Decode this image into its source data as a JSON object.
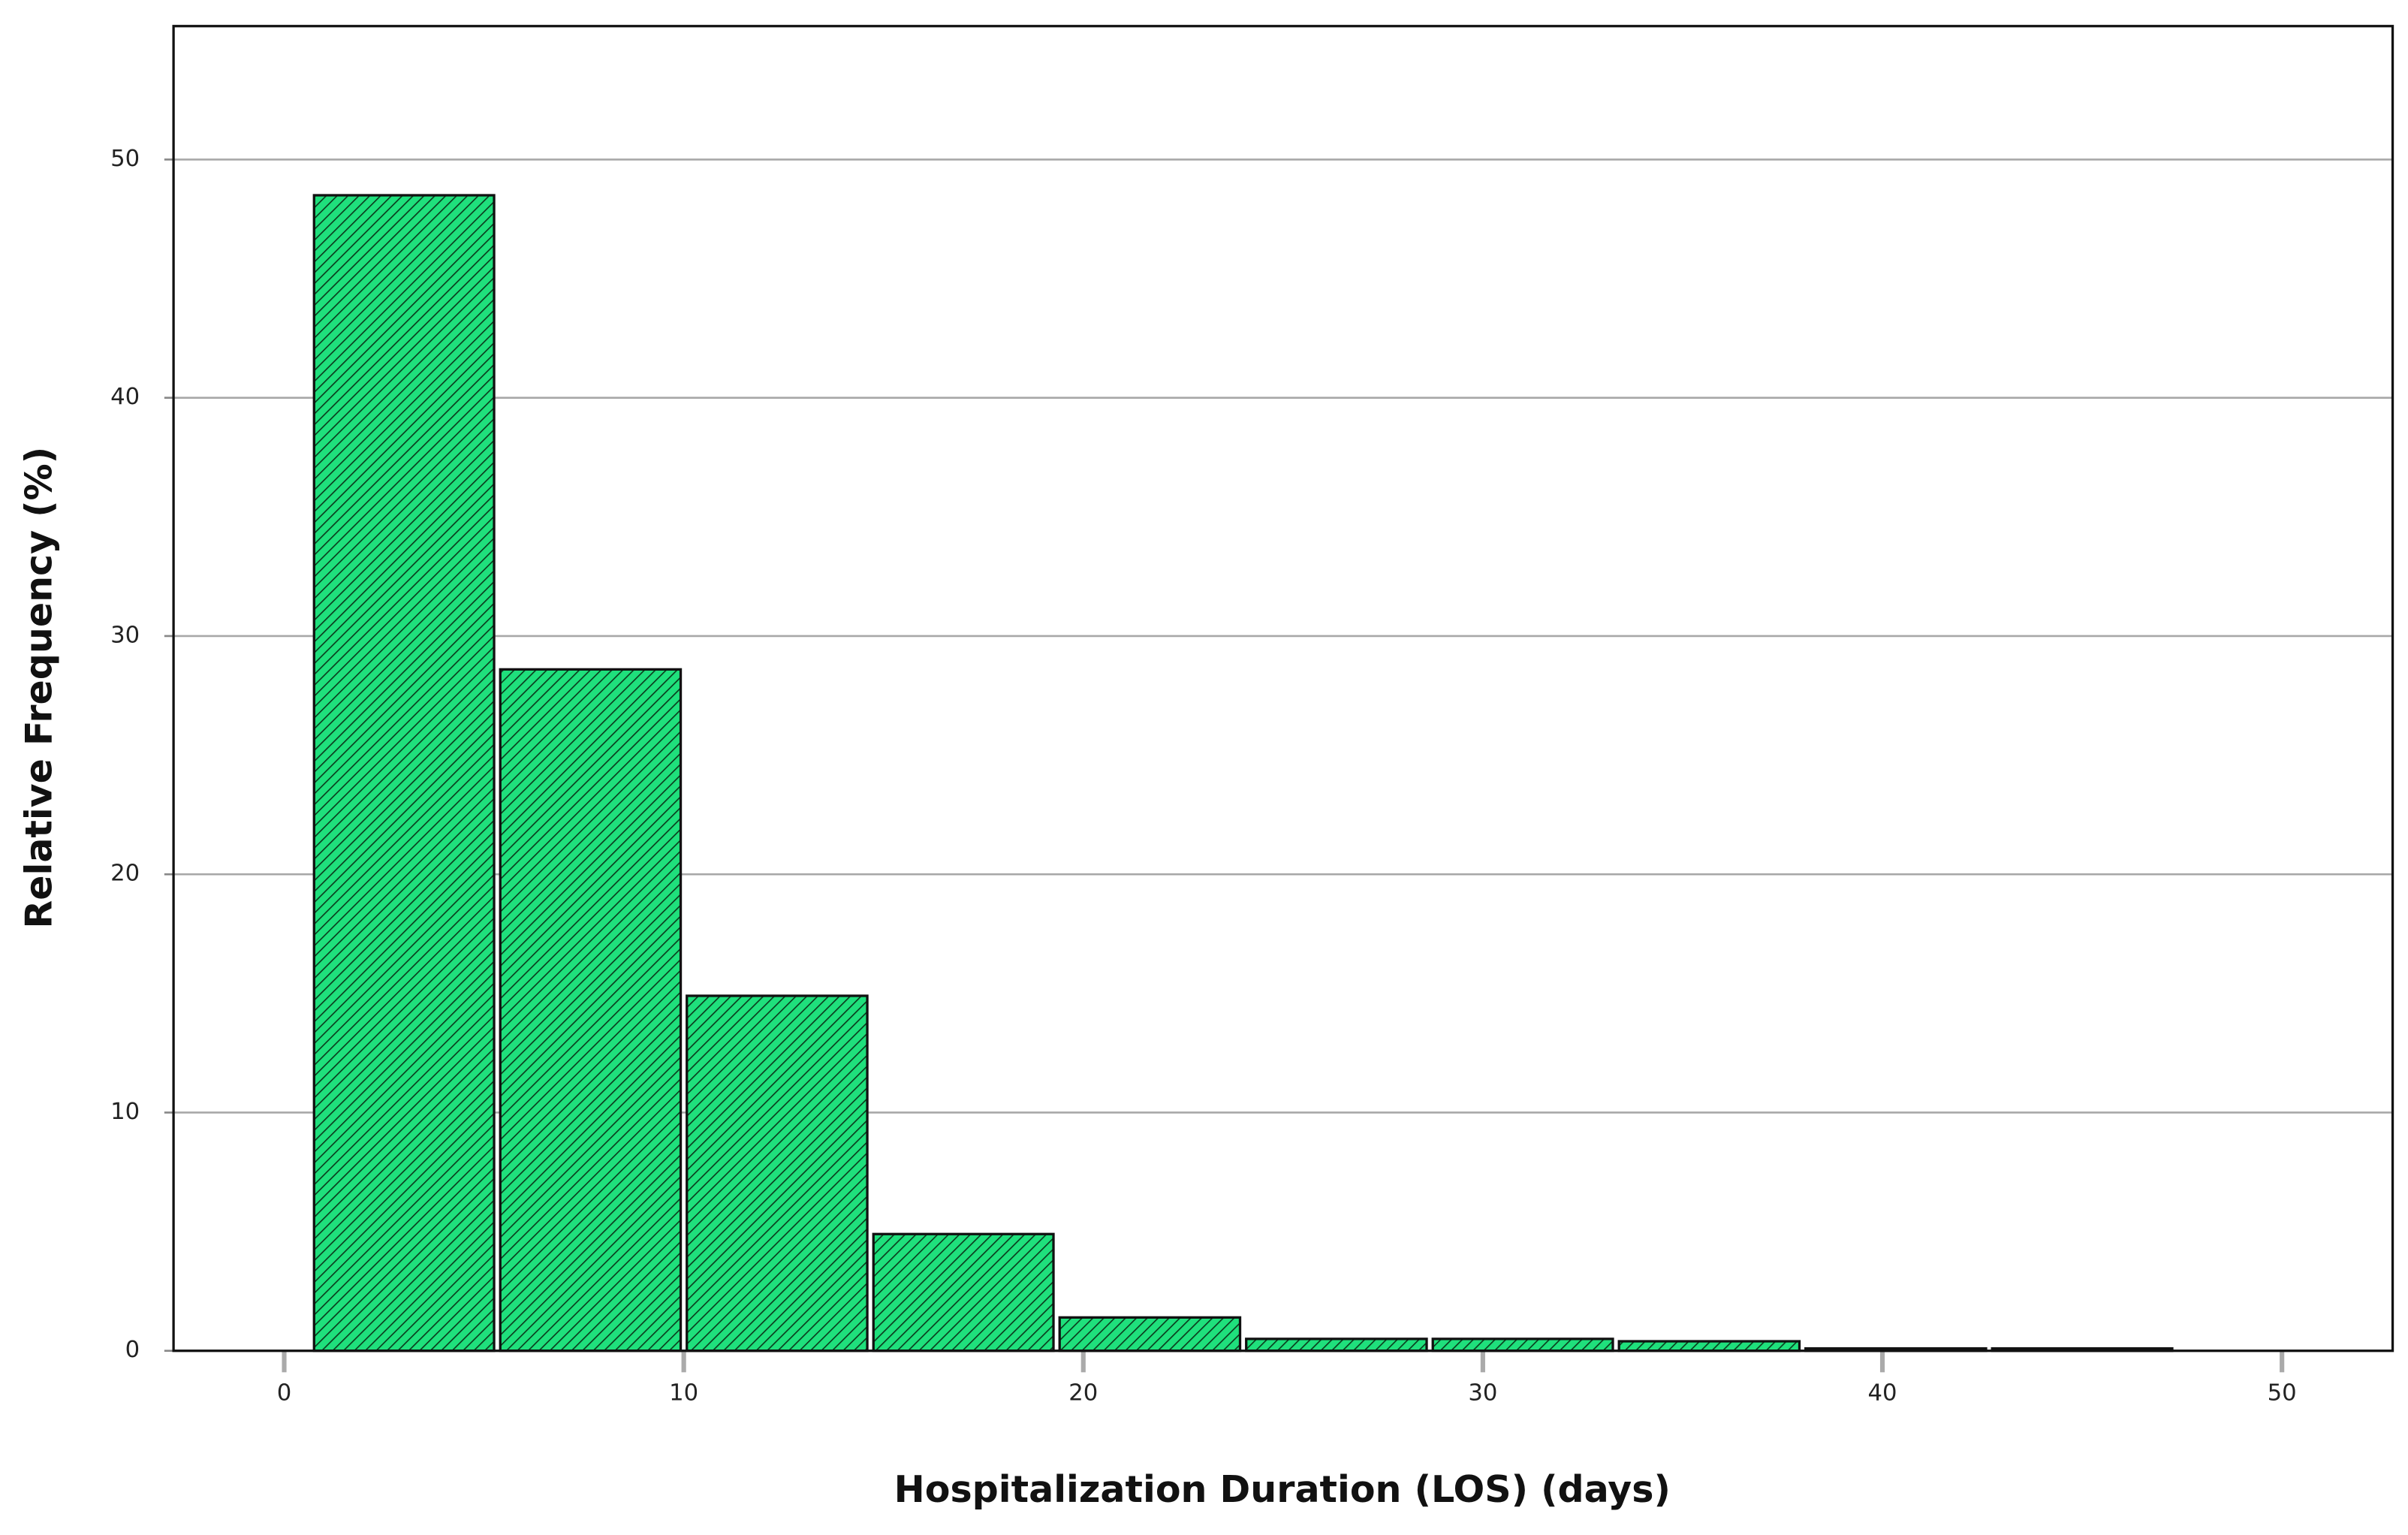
{
  "chart_data": {
    "type": "histogram",
    "x_label": "Hospitalization Duration (LOS) (days)",
    "y_label": "Relative Frequency (%)",
    "bins": [
      0.67,
      5.33,
      10,
      14.67,
      19.33,
      24,
      28.67,
      33.33,
      38,
      42.67,
      47.33
    ],
    "values": [
      48.5,
      28.6,
      14.9,
      4.9,
      1.4,
      0.5,
      0.5,
      0.4,
      0.1,
      0.1
    ],
    "color": "#1fe07c",
    "xlim": [
      -2.77,
      52.77
    ],
    "ylim": [
      0,
      55.6
    ],
    "xticks": [
      0,
      10,
      20,
      30,
      40,
      50
    ],
    "yticks": [
      0,
      10,
      20,
      30,
      40,
      50
    ],
    "grid": true
  }
}
